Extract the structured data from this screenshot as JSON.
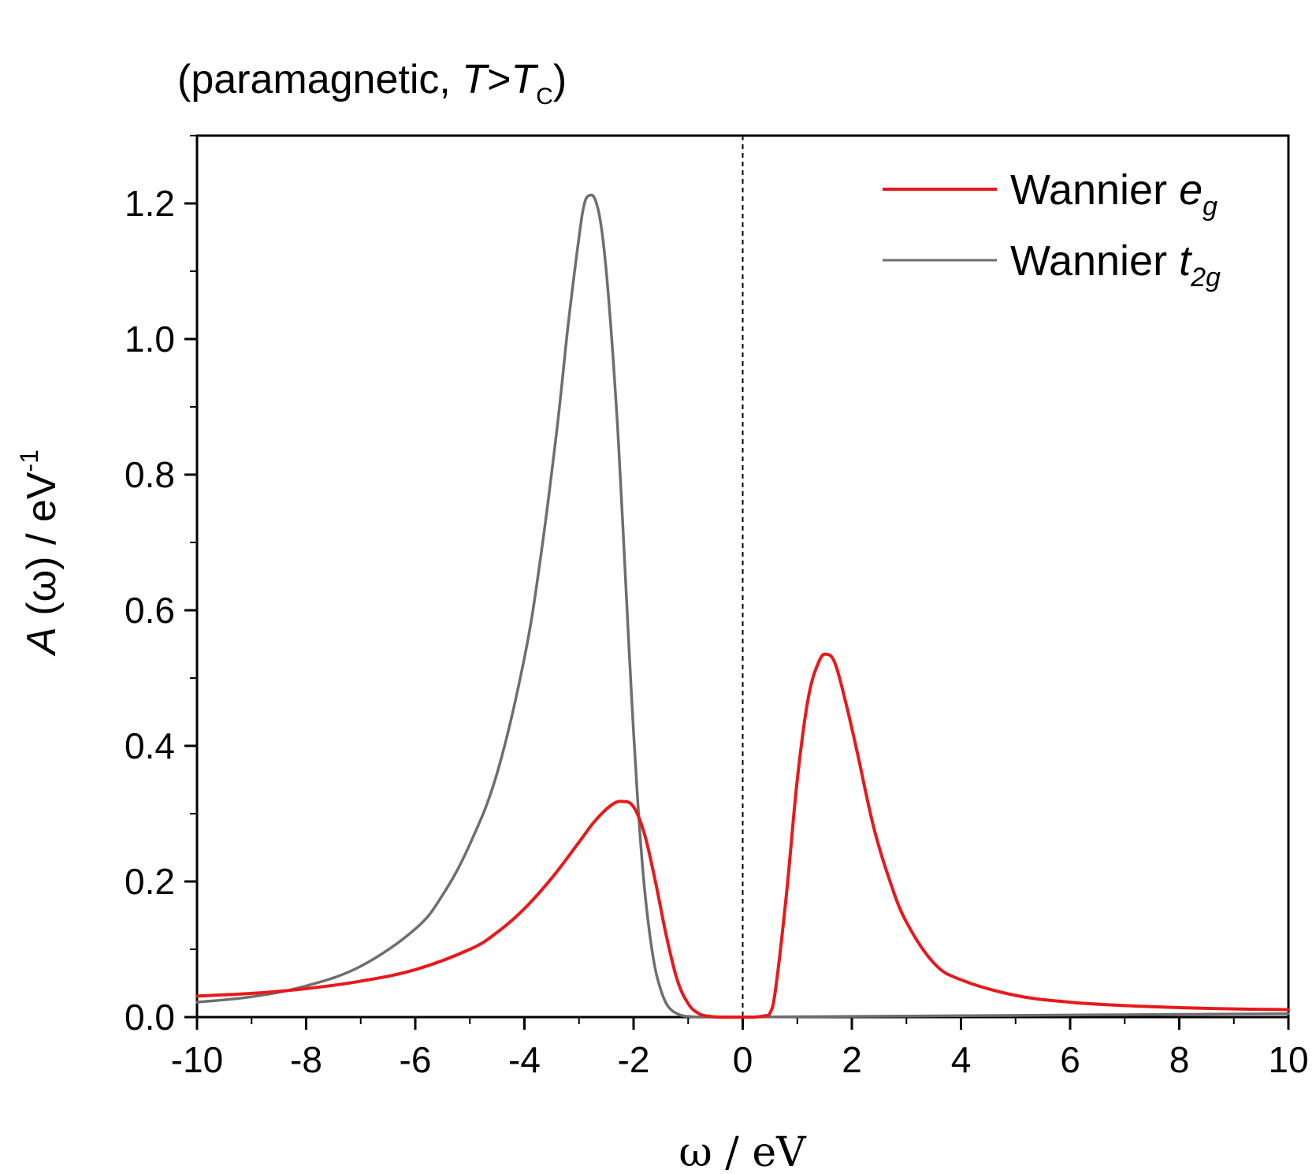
{
  "chart_data": {
    "type": "line",
    "subtitle": {
      "prefix": "(paramagnetic, ",
      "T": "T",
      "gt": ">",
      "Tc": "T",
      "Tc_sub": "C",
      "suffix": ")"
    },
    "xlabel": "ω / eV",
    "ylabel": {
      "A": "A",
      "rest": " (ω) / eV",
      "exp": "-1"
    },
    "xlim": [
      -10,
      10
    ],
    "ylim": [
      0,
      1.3
    ],
    "x_ticks": [
      -10,
      -8,
      -6,
      -4,
      -2,
      0,
      2,
      4,
      6,
      8,
      10
    ],
    "x_tick_labels": [
      "-10",
      "-8",
      "-6",
      "-4",
      "-2",
      "0",
      "2",
      "4",
      "6",
      "8",
      "10"
    ],
    "y_ticks": [
      0,
      0.2,
      0.4,
      0.6,
      0.8,
      1.0,
      1.2
    ],
    "y_tick_labels": [
      "0.0",
      "0.2",
      "0.4",
      "0.6",
      "0.8",
      "1.0",
      "1.2"
    ],
    "reference_line_x": 0,
    "grid": false,
    "legend_position": "top-right",
    "series": [
      {
        "name": "Wannier e_g",
        "legend": {
          "base": "Wannier ",
          "sym": "e",
          "sub": "g"
        },
        "color": "#e8191b",
        "x": [
          -10,
          -9,
          -8,
          -7,
          -6,
          -5,
          -4.5,
          -4,
          -3.5,
          -3,
          -2.7,
          -2.4,
          -2.2,
          -2.0,
          -1.8,
          -1.6,
          -1.4,
          -1.2,
          -1.0,
          -0.8,
          -0.6,
          -0.4,
          -0.2,
          0,
          0.2,
          0.4,
          0.5,
          0.6,
          0.8,
          1.0,
          1.2,
          1.4,
          1.55,
          1.7,
          1.9,
          2.1,
          2.4,
          2.7,
          3.0,
          3.5,
          4.0,
          5.0,
          6.0,
          7.0,
          8.0,
          9.0,
          10.0
        ],
        "y": [
          0.031,
          0.035,
          0.042,
          0.053,
          0.07,
          0.1,
          0.125,
          0.16,
          0.205,
          0.258,
          0.29,
          0.313,
          0.318,
          0.31,
          0.27,
          0.2,
          0.12,
          0.055,
          0.02,
          0.005,
          0.001,
          0.0,
          0.0,
          0.0,
          0.0,
          0.002,
          0.006,
          0.04,
          0.18,
          0.35,
          0.47,
          0.525,
          0.535,
          0.52,
          0.46,
          0.39,
          0.28,
          0.2,
          0.14,
          0.08,
          0.055,
          0.032,
          0.022,
          0.017,
          0.014,
          0.012,
          0.011
        ]
      },
      {
        "name": "Wannier t_2g",
        "legend": {
          "base": "Wannier ",
          "sym": "t",
          "sub": "2g"
        },
        "color": "#6e6e6e",
        "x": [
          -10,
          -9,
          -8,
          -7,
          -6,
          -5.5,
          -5,
          -4.5,
          -4,
          -3.7,
          -3.4,
          -3.2,
          -3.0,
          -2.9,
          -2.8,
          -2.7,
          -2.6,
          -2.5,
          -2.4,
          -2.3,
          -2.2,
          -2.1,
          -2.0,
          -1.9,
          -1.8,
          -1.7,
          -1.6,
          -1.5,
          -1.4,
          -1.3,
          -1.2,
          -1.1,
          -1.0,
          -0.8,
          -0.5,
          0,
          2,
          4,
          6,
          8,
          10
        ],
        "y": [
          0.022,
          0.03,
          0.046,
          0.075,
          0.13,
          0.18,
          0.255,
          0.36,
          0.53,
          0.68,
          0.87,
          1.02,
          1.15,
          1.2,
          1.212,
          1.205,
          1.17,
          1.1,
          1.0,
          0.88,
          0.73,
          0.57,
          0.42,
          0.29,
          0.19,
          0.12,
          0.07,
          0.04,
          0.02,
          0.01,
          0.005,
          0.002,
          0.001,
          0.0,
          0.0,
          0.0,
          0.001,
          0.002,
          0.003,
          0.004,
          0.005
        ]
      }
    ]
  }
}
